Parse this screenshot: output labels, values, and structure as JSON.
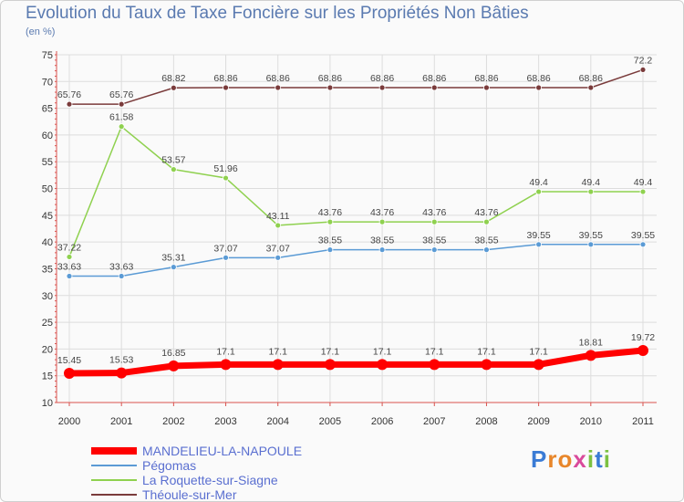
{
  "title": "Evolution du Taux de Taxe Foncière sur les Propriétés Non Bâties",
  "unit_label": "(en %)",
  "brand": {
    "name": "Proxiti",
    "letters": [
      "P",
      "r",
      "o",
      "x",
      "i",
      "t",
      "i"
    ],
    "colors": [
      "#3a7bd5",
      "#e8862a",
      "#e8862a",
      "#d94a9b",
      "#7cc142",
      "#3a7bd5",
      "#7cc142"
    ]
  },
  "chart_data": {
    "type": "line",
    "title": "Evolution du Taux de Taxe Foncière sur les Propriétés Non Bâties",
    "ylabel": "(en %)",
    "xlabel": "",
    "ylim": [
      10,
      75
    ],
    "yticks": [
      10,
      15,
      20,
      25,
      30,
      35,
      40,
      45,
      50,
      55,
      60,
      65,
      70,
      75
    ],
    "categories": [
      "2000",
      "2001",
      "2002",
      "2003",
      "2004",
      "2005",
      "2006",
      "2007",
      "2008",
      "2009",
      "2010",
      "2011"
    ],
    "series": [
      {
        "name": "MANDELIEU-LA-NAPOULE",
        "color": "#ff0000",
        "highlight": true,
        "values": [
          15.45,
          15.53,
          16.85,
          17.1,
          17.1,
          17.1,
          17.1,
          17.1,
          17.1,
          17.1,
          18.81,
          19.72
        ],
        "labels": [
          "15.45",
          "15.53",
          "16.85",
          "17.1",
          "17.1",
          "17.1",
          "17.1",
          "17.1",
          "17.1",
          "17.1",
          "18.81",
          "19.72"
        ]
      },
      {
        "name": "Pégomas",
        "color": "#5b9bd5",
        "highlight": false,
        "values": [
          33.63,
          33.63,
          35.31,
          37.07,
          37.07,
          38.55,
          38.55,
          38.55,
          38.55,
          39.55,
          39.55,
          39.55
        ],
        "labels": [
          "33.63",
          "33.63",
          "35.31",
          "37.07",
          "37.07",
          "38.55",
          "38.55",
          "38.55",
          "38.55",
          "39.55",
          "39.55",
          "39.55"
        ]
      },
      {
        "name": "La Roquette-sur-Siagne",
        "color": "#8fd14f",
        "highlight": false,
        "values": [
          37.22,
          61.58,
          53.57,
          51.96,
          43.11,
          43.76,
          43.76,
          43.76,
          43.76,
          49.4,
          49.4,
          49.4
        ],
        "labels": [
          "37.22",
          "61.58",
          "53.57",
          "51.96",
          "43.11",
          "43.76",
          "43.76",
          "43.76",
          "43.76",
          "49.4",
          "49.4",
          "49.4"
        ]
      },
      {
        "name": "Théoule-sur-Mer",
        "color": "#7a3b3b",
        "highlight": false,
        "values": [
          65.76,
          65.76,
          68.82,
          68.86,
          68.86,
          68.86,
          68.86,
          68.86,
          68.86,
          68.86,
          68.86,
          72.2
        ],
        "labels": [
          "65.76",
          "65.76",
          "68.82",
          "68.86",
          "68.86",
          "68.86",
          "68.86",
          "68.86",
          "68.86",
          "68.86",
          "68.86",
          "72.2"
        ]
      }
    ],
    "legend": [
      "MANDELIEU-LA-NAPOULE",
      "Pégomas",
      "La Roquette-sur-Siagne",
      "Théoule-sur-Mer"
    ],
    "grid": true,
    "legend_position": "bottom-left"
  }
}
